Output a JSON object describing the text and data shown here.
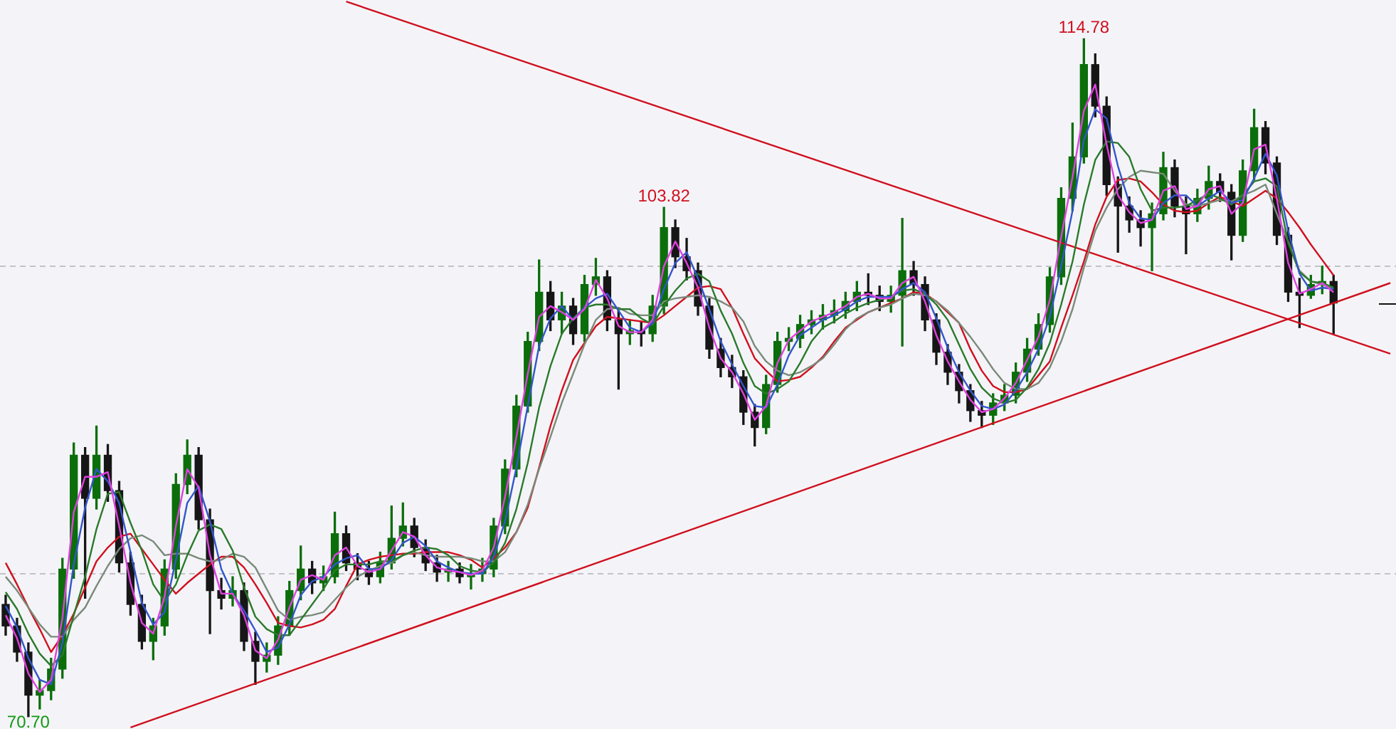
{
  "chart_data": {
    "type": "candlestick",
    "categories": [
      null,
      null,
      null,
      null,
      null,
      null,
      null,
      null,
      null,
      null,
      null,
      null,
      null,
      null,
      null,
      null,
      null,
      null,
      null,
      null,
      null,
      null,
      null,
      null,
      null,
      null,
      null,
      null,
      null,
      null,
      null,
      null,
      null,
      null,
      null,
      null,
      null,
      null,
      null,
      null,
      null,
      null,
      null,
      null,
      null,
      null,
      null,
      null,
      null,
      null,
      null,
      null,
      null,
      null,
      null,
      null,
      null,
      null,
      null,
      null,
      null,
      null,
      null,
      null,
      null,
      null,
      null,
      null,
      null,
      null,
      null,
      null,
      null,
      null,
      null,
      null,
      null,
      null,
      null,
      null,
      null,
      null,
      null,
      null,
      null,
      null,
      null,
      null,
      null,
      null,
      null,
      null,
      null,
      null,
      null,
      null,
      null,
      null,
      null,
      null,
      null,
      null,
      null,
      null,
      null,
      null,
      null,
      null,
      null,
      null,
      null,
      null,
      null,
      null,
      null,
      null,
      null,
      null,
      null,
      null,
      null,
      null,
      null
    ],
    "ohlc": [
      [
        78.0,
        78.6,
        76.0,
        76.6
      ],
      [
        76.6,
        77.1,
        74.3,
        74.9
      ],
      [
        74.9,
        75.5,
        70.7,
        72.1
      ],
      [
        72.1,
        73.1,
        71.2,
        72.4
      ],
      [
        72.4,
        74.5,
        71.8,
        73.8
      ],
      [
        73.8,
        81.0,
        73.2,
        80.3
      ],
      [
        80.3,
        88.5,
        79.7,
        87.7
      ],
      [
        87.7,
        88.2,
        78.4,
        84.9
      ],
      [
        84.9,
        89.6,
        84.2,
        87.7
      ],
      [
        87.7,
        88.4,
        84.7,
        85.4
      ],
      [
        85.4,
        86.0,
        80.1,
        80.7
      ],
      [
        80.7,
        81.4,
        77.3,
        78.0
      ],
      [
        78.0,
        78.6,
        75.1,
        75.6
      ],
      [
        75.6,
        77.1,
        74.4,
        76.6
      ],
      [
        76.6,
        80.9,
        76.0,
        80.3
      ],
      [
        80.3,
        86.5,
        79.7,
        85.8
      ],
      [
        85.8,
        88.7,
        85.2,
        87.7
      ],
      [
        87.7,
        88.2,
        82.9,
        83.5
      ],
      [
        83.5,
        84.2,
        76.1,
        78.9
      ],
      [
        78.9,
        79.7,
        77.7,
        78.4
      ],
      [
        78.4,
        79.8,
        77.9,
        78.9
      ],
      [
        78.9,
        79.4,
        75.0,
        75.6
      ],
      [
        75.6,
        76.2,
        72.8,
        74.3
      ],
      [
        74.3,
        75.5,
        73.6,
        74.7
      ],
      [
        74.7,
        77.2,
        74.1,
        76.6
      ],
      [
        76.6,
        79.5,
        76.0,
        78.9
      ],
      [
        78.9,
        81.8,
        78.3,
        80.3
      ],
      [
        80.3,
        80.8,
        78.7,
        79.4
      ],
      [
        79.4,
        80.5,
        78.9,
        79.8
      ],
      [
        79.8,
        84.0,
        79.4,
        82.6
      ],
      [
        82.6,
        83.1,
        80.2,
        80.7
      ],
      [
        80.7,
        81.3,
        79.6,
        80.3
      ],
      [
        80.3,
        80.8,
        79.3,
        79.8
      ],
      [
        79.8,
        81.4,
        79.4,
        80.7
      ],
      [
        80.7,
        84.4,
        80.3,
        82.3
      ],
      [
        82.3,
        84.6,
        81.8,
        83.1
      ],
      [
        83.1,
        83.6,
        81.1,
        81.7
      ],
      [
        81.7,
        82.2,
        80.2,
        80.7
      ],
      [
        80.7,
        81.2,
        79.5,
        80.1
      ],
      [
        80.1,
        80.8,
        79.5,
        80.3
      ],
      [
        80.3,
        80.7,
        79.4,
        79.8
      ],
      [
        79.8,
        80.6,
        79.0,
        80.0
      ],
      [
        80.0,
        81.0,
        79.5,
        80.3
      ],
      [
        80.3,
        83.6,
        79.8,
        83.1
      ],
      [
        83.1,
        87.4,
        82.6,
        86.8
      ],
      [
        86.8,
        91.6,
        86.3,
        90.9
      ],
      [
        90.9,
        95.7,
        90.5,
        95.1
      ],
      [
        95.1,
        100.4,
        94.5,
        98.3
      ],
      [
        98.3,
        99.0,
        95.8,
        96.5
      ],
      [
        96.5,
        98.3,
        95.6,
        97.4
      ],
      [
        97.4,
        97.9,
        94.9,
        95.6
      ],
      [
        95.6,
        99.4,
        95.1,
        98.8
      ],
      [
        98.8,
        100.5,
        98.1,
        99.3
      ],
      [
        99.3,
        99.7,
        95.8,
        96.5
      ],
      [
        96.5,
        97.1,
        92.0,
        95.6
      ],
      [
        95.6,
        96.5,
        94.9,
        95.8
      ],
      [
        95.8,
        96.4,
        94.8,
        95.6
      ],
      [
        95.6,
        98.1,
        95.1,
        97.4
      ],
      [
        97.4,
        103.82,
        96.9,
        102.5
      ],
      [
        102.5,
        103.0,
        99.9,
        100.6
      ],
      [
        100.6,
        101.8,
        99.1,
        99.7
      ],
      [
        99.7,
        100.2,
        96.8,
        97.4
      ],
      [
        97.4,
        97.9,
        94.0,
        94.6
      ],
      [
        94.6,
        95.3,
        92.8,
        93.4
      ],
      [
        93.4,
        94.2,
        92.1,
        92.8
      ],
      [
        92.8,
        93.2,
        89.7,
        90.5
      ],
      [
        90.5,
        91.0,
        88.3,
        89.5
      ],
      [
        89.5,
        92.9,
        89.1,
        92.3
      ],
      [
        92.3,
        95.7,
        91.8,
        95.1
      ],
      [
        95.1,
        96.0,
        94.5,
        95.3
      ],
      [
        95.3,
        96.8,
        94.7,
        96.2
      ],
      [
        96.2,
        97.1,
        95.6,
        96.5
      ],
      [
        96.5,
        97.5,
        95.9,
        96.8
      ],
      [
        96.8,
        97.8,
        96.3,
        97.1
      ],
      [
        97.1,
        98.3,
        96.6,
        97.7
      ],
      [
        97.7,
        99.0,
        97.1,
        98.3
      ],
      [
        98.3,
        99.5,
        97.5,
        98.1
      ],
      [
        98.1,
        98.7,
        97.1,
        97.7
      ],
      [
        97.7,
        98.7,
        97.0,
        98.1
      ],
      [
        98.1,
        103.1,
        94.8,
        99.7
      ],
      [
        99.7,
        100.3,
        98.1,
        98.8
      ],
      [
        98.8,
        99.3,
        95.8,
        96.5
      ],
      [
        96.5,
        96.9,
        93.6,
        94.4
      ],
      [
        94.4,
        94.9,
        92.3,
        93.1
      ],
      [
        93.1,
        93.6,
        91.1,
        91.9
      ],
      [
        91.9,
        92.3,
        89.9,
        90.6
      ],
      [
        90.6,
        91.2,
        89.5,
        90.3
      ],
      [
        90.3,
        91.7,
        89.7,
        91.1
      ],
      [
        91.1,
        92.3,
        90.6,
        91.6
      ],
      [
        91.6,
        93.7,
        91.1,
        93.1
      ],
      [
        93.1,
        95.3,
        92.5,
        94.6
      ],
      [
        94.6,
        96.9,
        94.2,
        96.2
      ],
      [
        96.2,
        99.9,
        95.7,
        99.3
      ],
      [
        99.3,
        105.1,
        98.8,
        104.4
      ],
      [
        104.4,
        109.3,
        103.6,
        107.1
      ],
      [
        107.1,
        114.78,
        106.7,
        113.1
      ],
      [
        113.1,
        113.8,
        109.7,
        110.4
      ],
      [
        110.4,
        111.0,
        104.6,
        105.3
      ],
      [
        105.3,
        105.8,
        100.9,
        103.9
      ],
      [
        103.9,
        104.5,
        102.2,
        103.0
      ],
      [
        103.0,
        103.6,
        101.3,
        102.5
      ],
      [
        102.5,
        104.1,
        99.7,
        103.4
      ],
      [
        103.4,
        107.4,
        103.0,
        106.4
      ],
      [
        106.4,
        106.9,
        103.2,
        103.9
      ],
      [
        103.9,
        104.5,
        100.8,
        103.4
      ],
      [
        103.4,
        105.0,
        102.9,
        104.4
      ],
      [
        104.4,
        106.5,
        103.7,
        105.5
      ],
      [
        105.5,
        106.0,
        104.2,
        104.8
      ],
      [
        104.8,
        105.3,
        100.4,
        102.0
      ],
      [
        102.0,
        106.9,
        101.6,
        106.2
      ],
      [
        106.2,
        110.2,
        105.6,
        109.0
      ],
      [
        109.0,
        109.4,
        106.0,
        106.7
      ],
      [
        106.7,
        107.1,
        101.4,
        102.0
      ],
      [
        102.0,
        102.5,
        97.7,
        98.3
      ],
      [
        98.3,
        99.2,
        96.0,
        98.1
      ],
      [
        98.1,
        99.4,
        97.9,
        98.8
      ],
      [
        98.8,
        100.0,
        98.2,
        99.0
      ],
      [
        99.0,
        99.4,
        95.6,
        97.6
      ],
      null,
      null,
      null,
      null,
      null
    ],
    "series": [
      {
        "type": "line",
        "color": "#e040e0",
        "values": [
          77.3,
          75.8,
          73.5,
          72.3,
          73.1,
          77.1,
          84.0,
          86.3,
          86.3,
          86.6,
          83.1,
          79.4,
          76.8,
          76.1,
          78.5,
          83.1,
          86.8,
          85.6,
          81.2,
          78.7,
          78.7,
          77.3,
          75.0,
          74.5,
          75.7,
          77.8,
          79.6,
          79.9,
          79.6,
          81.2,
          81.7,
          80.5,
          80.1,
          80.3,
          81.5,
          82.7,
          82.4,
          81.2,
          80.4,
          80.2,
          80.1,
          79.9,
          80.2,
          81.7,
          85.0,
          88.9,
          93.0,
          96.7,
          97.4,
          97.0,
          96.5,
          97.2,
          99.1,
          97.9,
          96.1,
          95.7,
          95.7,
          96.5,
          100.0,
          101.6,
          100.2,
          98.6,
          96.0,
          94.0,
          93.1,
          91.7,
          90.0,
          90.9,
          93.7,
          95.2,
          95.8,
          96.4,
          96.7,
          97.0,
          97.4,
          98.0,
          98.2,
          97.9,
          97.9,
          98.9,
          99.3,
          97.7,
          95.5,
          93.8,
          92.5,
          91.3,
          90.5,
          90.7,
          91.4,
          92.4,
          93.9,
          95.4,
          97.8,
          101.9,
          105.8,
          110.1,
          111.8,
          107.9,
          104.6,
          103.5,
          102.8,
          103.0,
          104.9,
          105.2,
          103.7,
          103.9,
          105.0,
          105.2,
          103.4,
          104.1,
          107.6,
          107.9,
          104.4,
          100.2,
          98.2,
          98.5,
          98.9,
          98.3,
          null,
          null,
          null,
          null,
          null
        ]
      },
      {
        "type": "line",
        "color": "#3355cc",
        "values": [
          77.9,
          76.5,
          74.5,
          73.1,
          72.8,
          75.5,
          80.6,
          84.3,
          86.8,
          86.0,
          84.6,
          81.4,
          78.1,
          76.7,
          77.5,
          80.9,
          84.6,
          85.7,
          83.4,
          80.3,
          78.7,
          77.6,
          76.3,
          74.9,
          75.2,
          76.7,
          78.6,
          79.5,
          79.8,
          80.6,
          81.0,
          81.2,
          80.3,
          80.3,
          80.9,
          82.0,
          82.4,
          81.8,
          80.8,
          80.4,
          80.1,
          80.0,
          80.0,
          81.1,
          83.4,
          86.9,
          90.9,
          94.8,
          96.6,
          97.4,
          96.5,
          97.3,
          97.9,
          98.2,
          97.1,
          96.0,
          95.7,
          96.3,
          98.5,
          100.2,
          100.9,
          99.2,
          97.2,
          95.1,
          93.6,
          92.2,
          90.9,
          90.8,
          92.3,
          94.2,
          95.5,
          96.0,
          96.5,
          96.8,
          97.2,
          97.7,
          98.0,
          98.0,
          98.0,
          98.5,
          98.9,
          98.3,
          96.6,
          94.7,
          93.1,
          91.9,
          90.9,
          90.7,
          91.0,
          91.9,
          93.1,
          94.6,
          96.7,
          100.0,
          103.6,
          108.2,
          110.2,
          109.6,
          106.5,
          104.1,
          103.1,
          103.0,
          104.1,
          104.6,
          104.6,
          103.9,
          104.4,
          104.9,
          104.1,
          104.3,
          105.7,
          107.3,
          105.9,
          102.3,
          99.5,
          98.4,
          98.6,
          98.5,
          null,
          null,
          null,
          null,
          null
        ]
      },
      {
        "type": "line",
        "color": "#2a7a2a",
        "values": [
          78.8,
          77.7,
          76.1,
          74.8,
          74.0,
          74.7,
          77.3,
          79.8,
          82.9,
          85.2,
          85.3,
          83.3,
          81.5,
          79.3,
          78.2,
          79.3,
          81.2,
          82.8,
          83.2,
          82.9,
          81.5,
          79.1,
          77.2,
          76.4,
          76.0,
          76.0,
          77.0,
          78.0,
          79.0,
          80.2,
          80.6,
          80.6,
          80.6,
          80.8,
          80.8,
          81.2,
          81.5,
          81.7,
          81.6,
          81.2,
          80.5,
          80.2,
          80.1,
          80.7,
          82.0,
          84.2,
          87.2,
          90.8,
          93.5,
          95.6,
          96.6,
          97.3,
          97.5,
          97.5,
          97.2,
          97.2,
          96.6,
          96.2,
          97.4,
          98.4,
          99.2,
          99.5,
          99.0,
          97.1,
          95.6,
          93.7,
          92.2,
          91.7,
          92.0,
          92.5,
          93.7,
          95.1,
          96.0,
          96.4,
          96.9,
          97.3,
          97.6,
          97.8,
          98.0,
          98.4,
          98.5,
          98.2,
          97.5,
          96.5,
          94.9,
          93.3,
          92.1,
          91.4,
          91.1,
          91.3,
          92.1,
          93.3,
          95.0,
          97.5,
          100.3,
          104.0,
          106.9,
          108.1,
          108.0,
          107.1,
          105.0,
          103.6,
          103.8,
          103.8,
          103.9,
          104.3,
          104.7,
          104.4,
          104.0,
          104.6,
          105.5,
          105.7,
          105.2,
          101.5,
          99.6,
          99.0,
          98.9,
          98.6,
          null,
          null,
          null,
          null,
          null
        ]
      },
      {
        "type": "line",
        "color": "#7a8a7a",
        "values": [
          79.8,
          78.9,
          77.8,
          76.7,
          75.9,
          75.9,
          77.0,
          77.8,
          79.2,
          80.5,
          81.6,
          82.3,
          82.5,
          82.1,
          81.2,
          81.3,
          81.3,
          81.0,
          80.8,
          80.9,
          81.3,
          81.1,
          80.4,
          79.0,
          77.6,
          77.0,
          77.2,
          77.3,
          77.5,
          78.3,
          79.1,
          79.8,
          80.2,
          80.5,
          80.7,
          81.2,
          81.4,
          81.2,
          81.1,
          81.1,
          81.1,
          81.0,
          80.8,
          80.8,
          81.4,
          82.7,
          84.5,
          86.8,
          88.9,
          91.1,
          93.0,
          94.9,
          96.5,
          97.2,
          97.3,
          96.9,
          96.8,
          96.8,
          97.7,
          97.9,
          98.0,
          98.1,
          98.0,
          97.7,
          97.3,
          96.4,
          94.8,
          93.8,
          93.2,
          92.9,
          93.1,
          93.5,
          94.0,
          94.9,
          95.9,
          96.6,
          97.0,
          97.3,
          97.5,
          97.9,
          98.2,
          98.1,
          97.7,
          97.1,
          96.3,
          95.4,
          94.4,
          93.3,
          92.4,
          92.0,
          92.0,
          92.4,
          93.4,
          95.1,
          97.2,
          99.9,
          102.3,
          103.8,
          105.0,
          105.8,
          106.2,
          106.1,
          106.0,
          104.9,
          104.0,
          103.9,
          104.1,
          104.3,
          104.2,
          104.6,
          104.9,
          105.3,
          103.4,
          101.6,
          99.7,
          99.0,
          98.8,
          98.5,
          null,
          null,
          null,
          null,
          null
        ]
      },
      {
        "type": "line",
        "color": "#d0101e",
        "values": [
          80.7,
          79.3,
          77.8,
          76.4,
          74.9,
          76.0,
          77.4,
          79.1,
          80.8,
          81.7,
          82.4,
          82.6,
          81.6,
          80.6,
          79.6,
          78.7,
          79.4,
          80.0,
          80.6,
          81.1,
          81.1,
          80.4,
          79.3,
          78.1,
          76.8,
          76.6,
          76.5,
          76.7,
          77.0,
          77.7,
          79.2,
          80.6,
          80.9,
          81.1,
          81.2,
          81.3,
          81.3,
          81.4,
          81.4,
          81.4,
          81.2,
          80.9,
          80.4,
          81.0,
          81.7,
          82.7,
          84.3,
          86.9,
          89.6,
          91.9,
          93.9,
          95.0,
          96.1,
          96.7,
          96.6,
          96.5,
          96.4,
          96.3,
          96.8,
          97.4,
          98.0,
          98.6,
          98.7,
          98.5,
          97.3,
          95.6,
          94.0,
          93.2,
          92.5,
          92.6,
          92.8,
          93.4,
          94.1,
          95.1,
          96.0,
          96.5,
          97.0,
          97.3,
          97.6,
          97.9,
          98.3,
          98.2,
          97.7,
          97.0,
          96.3,
          94.6,
          93.2,
          92.2,
          91.8,
          91.8,
          92.0,
          92.9,
          93.8,
          96.0,
          98.1,
          100.3,
          102.7,
          104.5,
          105.6,
          105.7,
          105.5,
          104.8,
          104.0,
          103.6,
          103.5,
          103.6,
          104.1,
          104.5,
          104.2,
          103.9,
          104.4,
          104.9,
          104.4,
          103.5,
          102.5,
          101.4,
          100.4,
          99.4,
          null,
          null,
          null,
          null,
          null
        ]
      },
      {
        "type": "line",
        "color": "#d0101e",
        "values": [
          null,
          null,
          null,
          null,
          null,
          null,
          null,
          null,
          null,
          null,
          null,
          null,
          null,
          null,
          null,
          null,
          null,
          null,
          null,
          null,
          null,
          null,
          null,
          null,
          null,
          null,
          null,
          null,
          null,
          null,
          117.2,
          null,
          null,
          null,
          null,
          null,
          null,
          null,
          null,
          null,
          null,
          null,
          null,
          null,
          null,
          null,
          null,
          null,
          null,
          null,
          null,
          null,
          null,
          null,
          null,
          null,
          null,
          null,
          null,
          null,
          null,
          null,
          null,
          null,
          null,
          null,
          null,
          null,
          null,
          null,
          null,
          null,
          null,
          null,
          null,
          null,
          null,
          null,
          null,
          null,
          null,
          null,
          null,
          null,
          null,
          null,
          null,
          null,
          null,
          null,
          null,
          null,
          null,
          null,
          null,
          null,
          null,
          null,
          null,
          null,
          null,
          null,
          null,
          null,
          null,
          null,
          null,
          null,
          null,
          null,
          null,
          null,
          null,
          null,
          null,
          null,
          null,
          null,
          null,
          null,
          null,
          null,
          94.3
        ]
      },
      {
        "type": "line",
        "color": "#d0101e",
        "values": [
          null,
          null,
          null,
          null,
          null,
          null,
          null,
          null,
          null,
          null,
          null,
          70.0,
          null,
          null,
          null,
          null,
          null,
          null,
          null,
          null,
          null,
          null,
          null,
          null,
          null,
          null,
          null,
          null,
          null,
          null,
          null,
          null,
          null,
          null,
          null,
          null,
          null,
          null,
          null,
          null,
          null,
          null,
          null,
          null,
          null,
          null,
          null,
          null,
          null,
          null,
          null,
          null,
          null,
          null,
          null,
          null,
          null,
          null,
          null,
          null,
          null,
          null,
          null,
          null,
          null,
          null,
          null,
          null,
          null,
          null,
          null,
          null,
          null,
          null,
          null,
          null,
          null,
          null,
          null,
          null,
          null,
          null,
          null,
          null,
          null,
          null,
          null,
          null,
          null,
          null,
          null,
          null,
          null,
          null,
          null,
          null,
          null,
          null,
          null,
          null,
          null,
          null,
          null,
          null,
          null,
          null,
          null,
          null,
          null,
          null,
          null,
          null,
          null,
          null,
          null,
          null,
          null,
          null,
          null,
          null,
          null,
          null,
          98.9
        ]
      }
    ],
    "ylim": [
      69.9,
      117.3
    ],
    "yticks": [
      {
        "value": 80,
        "label": null
      },
      {
        "value": 100,
        "label": null
      }
    ],
    "grid": "y",
    "tick_labels": false,
    "annotations": [
      {
        "text": "103.82",
        "y": 103.82
      },
      {
        "text": "114.78",
        "y": 114.78
      },
      {
        "text": "70.70",
        "y": 70.7
      }
    ]
  }
}
